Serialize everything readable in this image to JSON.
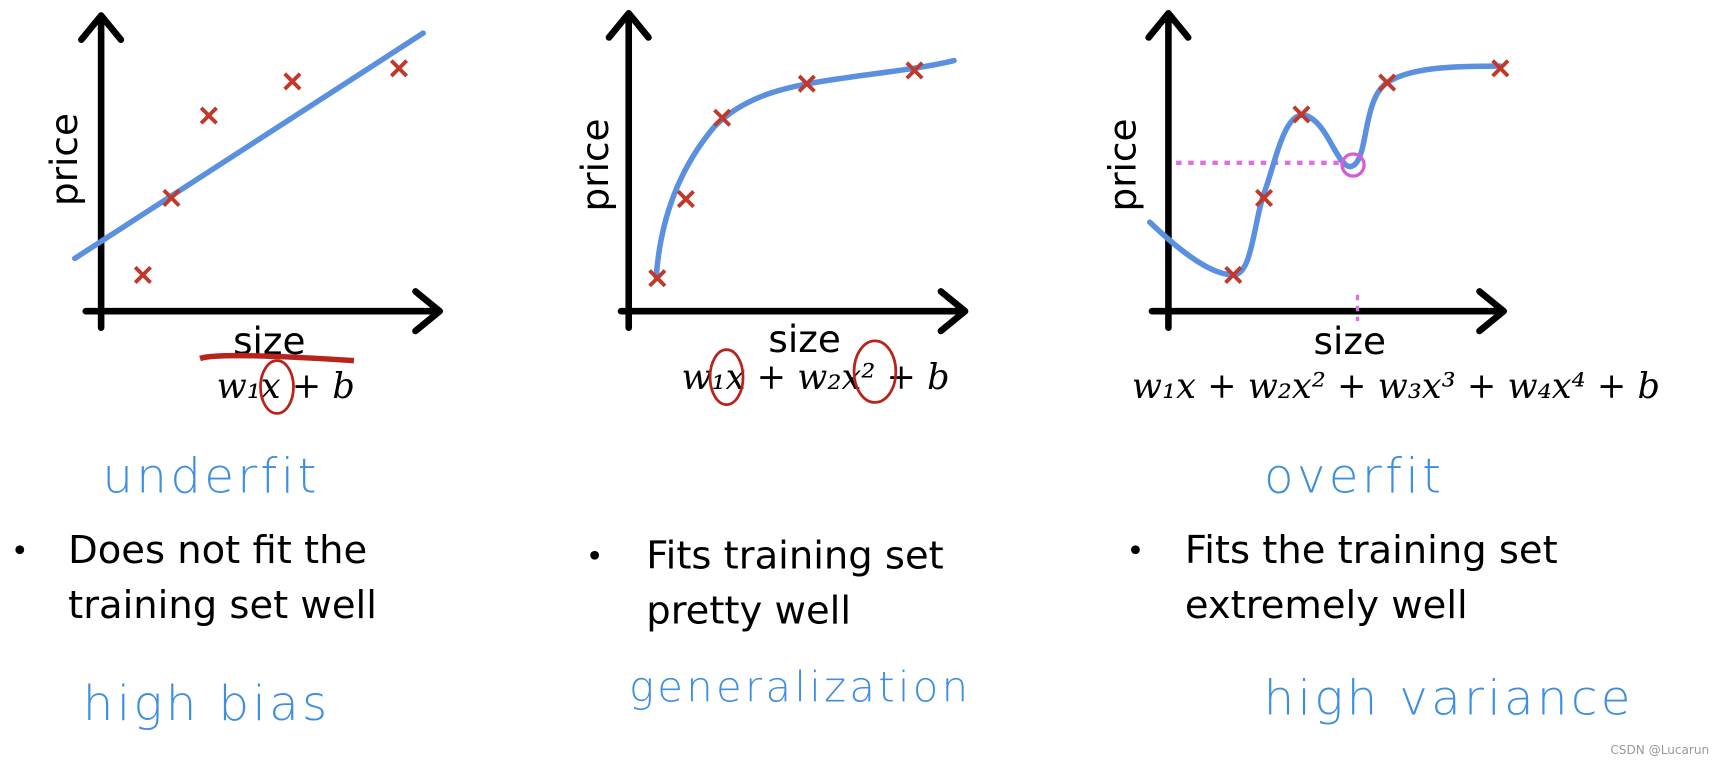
{
  "panels": [
    {
      "y_axis_label": "price",
      "x_axis_label": "size",
      "formula": "w₁x + b",
      "fit_label": "underfit",
      "bullet": [
        "Does not fit the",
        "training set well"
      ],
      "category": "high bias"
    },
    {
      "y_axis_label": "price",
      "x_axis_label": "size",
      "formula": "w₁x + w₂x² + b",
      "fit_label": "",
      "bullet": [
        "Fits training set",
        "pretty well"
      ],
      "category": "generalization"
    },
    {
      "y_axis_label": "price",
      "x_axis_label": "size",
      "formula": "w₁x + w₂x² + w₃x³ + w₄x⁴ + b",
      "fit_label": "overfit",
      "bullet": [
        "Fits the training set",
        "extremely well"
      ],
      "category": "high variance"
    }
  ],
  "watermark": "CSDN @Lucarun"
}
